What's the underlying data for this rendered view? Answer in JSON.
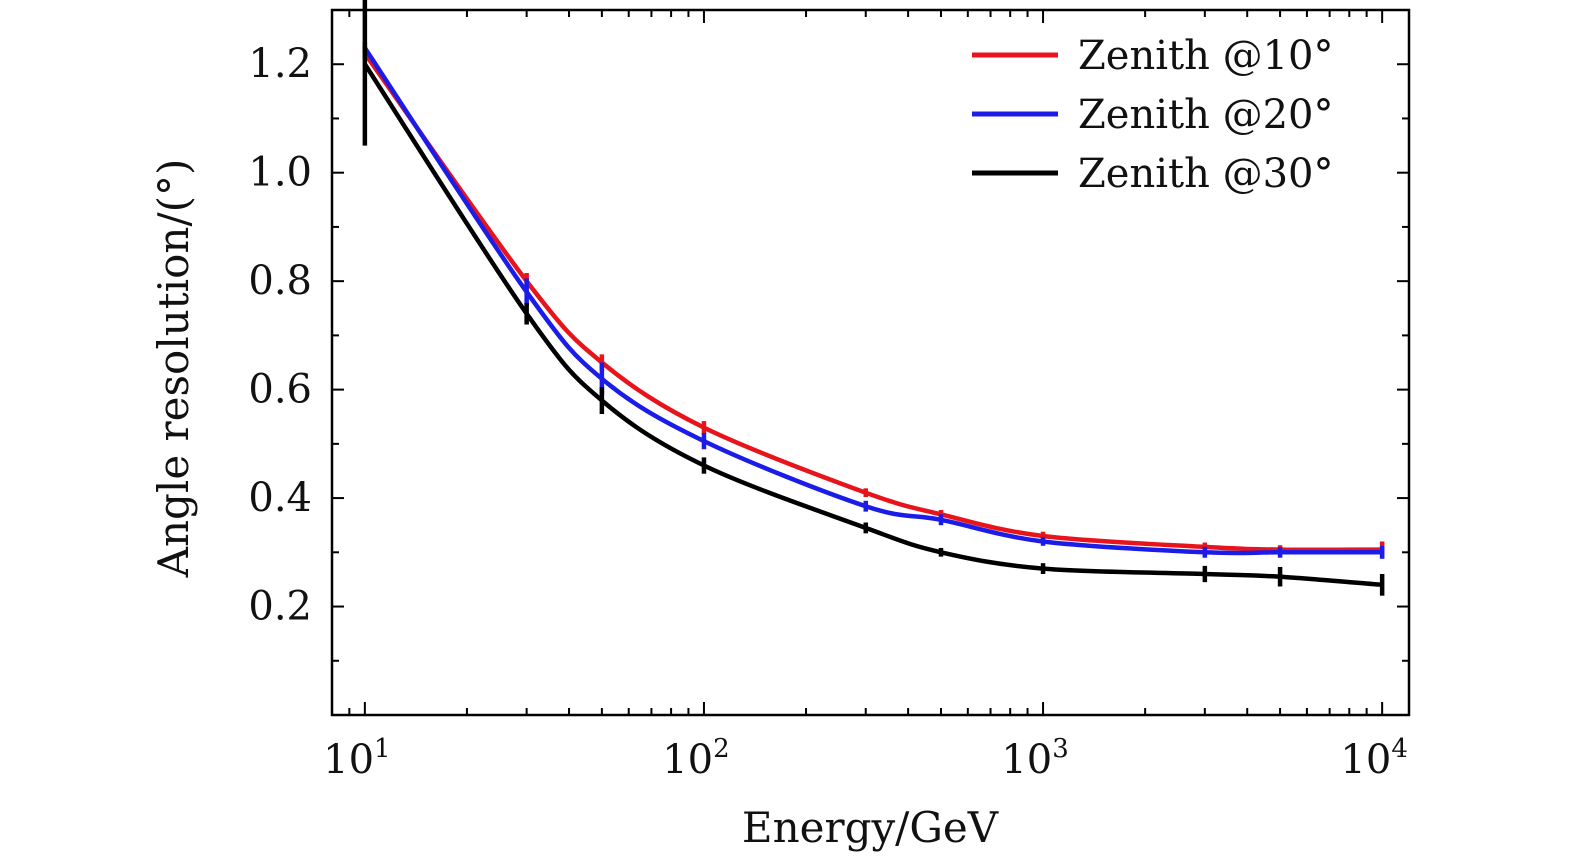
{
  "chart_data": {
    "type": "line",
    "title": "",
    "xlabel": "Energy/GeV",
    "ylabel": "Angle resolution/(°)",
    "xscale": "log",
    "xlim": [
      8,
      12000
    ],
    "ylim": [
      0,
      1.3
    ],
    "grid": false,
    "legend_position": "top-right",
    "x_ticks": [
      {
        "value": 10,
        "base": "10",
        "exp": "1"
      },
      {
        "value": 100,
        "base": "10",
        "exp": "2"
      },
      {
        "value": 1000,
        "base": "10",
        "exp": "3"
      },
      {
        "value": 10000,
        "base": "10",
        "exp": "4"
      }
    ],
    "y_ticks": [
      {
        "value": 0.2,
        "label": "0.2"
      },
      {
        "value": 0.4,
        "label": "0.4"
      },
      {
        "value": 0.6,
        "label": "0.6"
      },
      {
        "value": 0.8,
        "label": "0.8"
      },
      {
        "value": 1.0,
        "label": "1.0"
      },
      {
        "value": 1.2,
        "label": "1.2"
      }
    ],
    "x": [
      10,
      30,
      50,
      100,
      300,
      500,
      1000,
      3000,
      5000,
      10000
    ],
    "series": [
      {
        "name": "Zenith @10°",
        "color": "#e8141c",
        "values": [
          1.22,
          0.8,
          0.65,
          0.53,
          0.41,
          0.37,
          0.33,
          0.31,
          0.305,
          0.305
        ],
        "errors": [
          0.01,
          0.015,
          0.015,
          0.012,
          0.008,
          0.008,
          0.008,
          0.008,
          0.008,
          0.015
        ]
      },
      {
        "name": "Zenith @20°",
        "color": "#1c1ce8",
        "values": [
          1.23,
          0.78,
          0.62,
          0.505,
          0.385,
          0.36,
          0.32,
          0.3,
          0.3,
          0.3
        ],
        "errors": [
          0.01,
          0.025,
          0.03,
          0.015,
          0.01,
          0.01,
          0.008,
          0.01,
          0.01,
          0.012
        ]
      },
      {
        "name": "Zenith @30°",
        "color": "#000000",
        "values": [
          1.2,
          0.74,
          0.58,
          0.46,
          0.345,
          0.3,
          0.27,
          0.26,
          0.255,
          0.24
        ],
        "errors": [
          0.15,
          0.02,
          0.025,
          0.015,
          0.01,
          0.008,
          0.01,
          0.015,
          0.018,
          0.02
        ]
      }
    ]
  }
}
